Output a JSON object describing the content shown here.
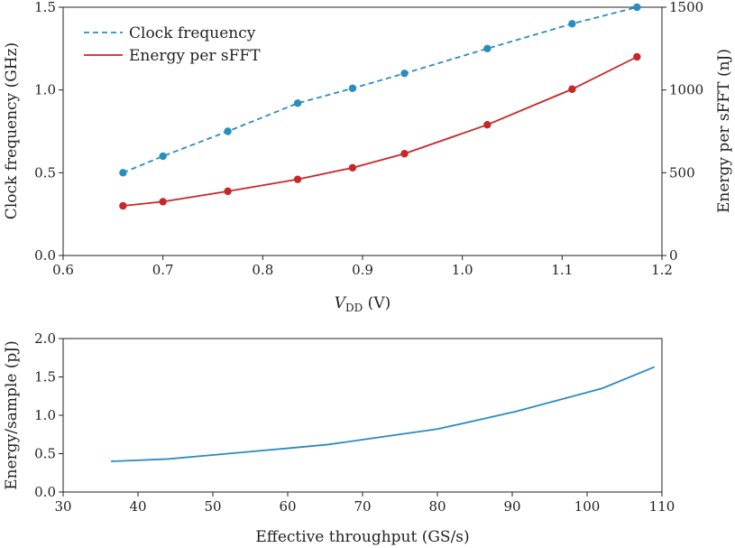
{
  "chart_data": [
    {
      "type": "line",
      "x_label": {
        "italic": "V",
        "subscript": "DD",
        "rest": " (V)"
      },
      "ylabel_left": "Clock frequency (GHz)",
      "ylabel_right": "Energy per sFFT (nJ)",
      "xlim": [
        0.6,
        1.2
      ],
      "ylim_left": [
        0.0,
        1.5
      ],
      "ylim_right": [
        0,
        1500
      ],
      "x_ticks": [
        "0.6",
        "0.7",
        "0.8",
        "0.9",
        "1.0",
        "1.1",
        "1.2"
      ],
      "y_ticks_left": [
        "0.0",
        "0.5",
        "1.0",
        "1.5"
      ],
      "y_ticks_right": [
        "0",
        "500",
        "1000",
        "1500"
      ],
      "legend_position": "top-left",
      "series": [
        {
          "name": "Clock frequency",
          "axis": "left",
          "style": "dashed",
          "color": "#2b8cbe",
          "x": [
            0.66,
            0.7,
            0.765,
            0.835,
            0.89,
            0.942,
            1.025,
            1.11,
            1.175
          ],
          "y": [
            0.5,
            0.6,
            0.75,
            0.92,
            1.01,
            1.1,
            1.25,
            1.4,
            1.5
          ]
        },
        {
          "name": "Energy per sFFT",
          "axis": "right",
          "style": "solid",
          "color": "#c62828",
          "x": [
            0.66,
            0.7,
            0.765,
            0.835,
            0.89,
            0.942,
            1.025,
            1.11,
            1.175
          ],
          "y": [
            300,
            325,
            388,
            460,
            530,
            615,
            790,
            1005,
            1200
          ]
        }
      ]
    },
    {
      "type": "line",
      "xlabel": "Effective throughput (GS/s)",
      "ylabel": "Energy/sample (pJ)",
      "xlim": [
        30,
        110
      ],
      "ylim": [
        0.0,
        2.0
      ],
      "x_ticks": [
        "30",
        "40",
        "50",
        "60",
        "70",
        "80",
        "90",
        "100",
        "110"
      ],
      "y_ticks": [
        "0.0",
        "0.5",
        "1.0",
        "1.5",
        "2.0"
      ],
      "series": [
        {
          "color": "#2b8cbe",
          "x": [
            36.4,
            44,
            52,
            60,
            65.5,
            72,
            80,
            90.5,
            102,
            109
          ],
          "y": [
            0.4,
            0.43,
            0.5,
            0.57,
            0.62,
            0.71,
            0.82,
            1.05,
            1.35,
            1.63
          ]
        }
      ]
    }
  ]
}
